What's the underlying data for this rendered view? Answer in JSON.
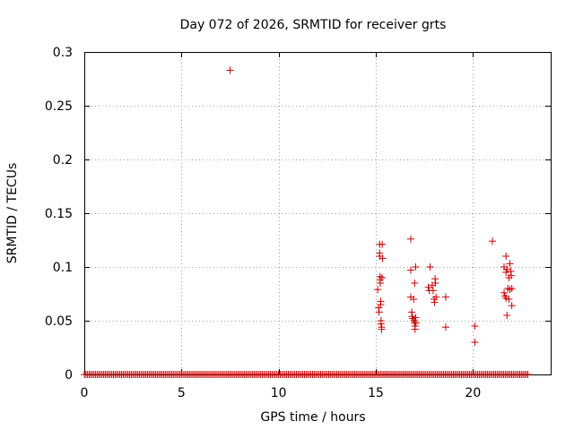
{
  "chart_data": {
    "type": "scatter",
    "title": "Day 072 of 2026, SRMTID for receiver grts",
    "xlabel": "GPS time / hours",
    "ylabel": "SRMTID / TECUs",
    "xlim": [
      0,
      24
    ],
    "ylim": [
      0,
      0.3
    ],
    "x_ticks": [
      0,
      5,
      10,
      15,
      20
    ],
    "x_tick_labels": [
      "0",
      "5",
      "10",
      "15",
      "20"
    ],
    "y_ticks": [
      0,
      0.05,
      0.1,
      0.15,
      0.2,
      0.25,
      0.3
    ],
    "y_tick_labels": [
      "0",
      "0.05",
      "0.1",
      "0.15",
      "0.2",
      "0.25",
      "0.3"
    ],
    "grid": true,
    "marker": "+",
    "marker_color": "#cc0000",
    "baseline_zero_range": [
      0,
      22.9
    ],
    "baseline_zero_step": 0.0833,
    "series": [
      {
        "name": "SRMTID",
        "points": [
          [
            7.5,
            0.283
          ],
          [
            15.1,
            0.079
          ],
          [
            15.15,
            0.062
          ],
          [
            15.17,
            0.058
          ],
          [
            15.2,
            0.121
          ],
          [
            15.2,
            0.113
          ],
          [
            15.2,
            0.11
          ],
          [
            15.22,
            0.091
          ],
          [
            15.22,
            0.088
          ],
          [
            15.23,
            0.085
          ],
          [
            15.25,
            0.068
          ],
          [
            15.25,
            0.065
          ],
          [
            15.27,
            0.05
          ],
          [
            15.27,
            0.047
          ],
          [
            15.3,
            0.044
          ],
          [
            15.3,
            0.042
          ],
          [
            15.32,
            0.09
          ],
          [
            15.33,
            0.121
          ],
          [
            15.35,
            0.108
          ],
          [
            16.8,
            0.126
          ],
          [
            16.8,
            0.097
          ],
          [
            16.8,
            0.072
          ],
          [
            16.85,
            0.058
          ],
          [
            16.87,
            0.054
          ],
          [
            16.9,
            0.052
          ],
          [
            16.95,
            0.07
          ],
          [
            16.97,
            0.05
          ],
          [
            17.0,
            0.085
          ],
          [
            17.0,
            0.048
          ],
          [
            17.02,
            0.045
          ],
          [
            17.02,
            0.042
          ],
          [
            17.05,
            0.1
          ],
          [
            17.05,
            0.053
          ],
          [
            17.07,
            0.048
          ],
          [
            17.7,
            0.081
          ],
          [
            17.75,
            0.078
          ],
          [
            17.8,
            0.1
          ],
          [
            17.9,
            0.083
          ],
          [
            17.95,
            0.078
          ],
          [
            18.0,
            0.07
          ],
          [
            18.02,
            0.067
          ],
          [
            18.05,
            0.089
          ],
          [
            18.07,
            0.085
          ],
          [
            18.1,
            0.072
          ],
          [
            18.6,
            0.072
          ],
          [
            18.6,
            0.044
          ],
          [
            20.1,
            0.045
          ],
          [
            20.1,
            0.03
          ],
          [
            21.0,
            0.124
          ],
          [
            21.6,
            0.1
          ],
          [
            21.6,
            0.076
          ],
          [
            21.65,
            0.073
          ],
          [
            21.7,
            0.11
          ],
          [
            21.7,
            0.095
          ],
          [
            21.7,
            0.071
          ],
          [
            21.75,
            0.098
          ],
          [
            21.75,
            0.055
          ],
          [
            21.8,
            0.08
          ],
          [
            21.85,
            0.09
          ],
          [
            21.85,
            0.07
          ],
          [
            21.9,
            0.103
          ],
          [
            21.9,
            0.079
          ],
          [
            21.95,
            0.096
          ],
          [
            21.97,
            0.092
          ],
          [
            22.0,
            0.08
          ],
          [
            22.0,
            0.064
          ]
        ]
      }
    ]
  }
}
